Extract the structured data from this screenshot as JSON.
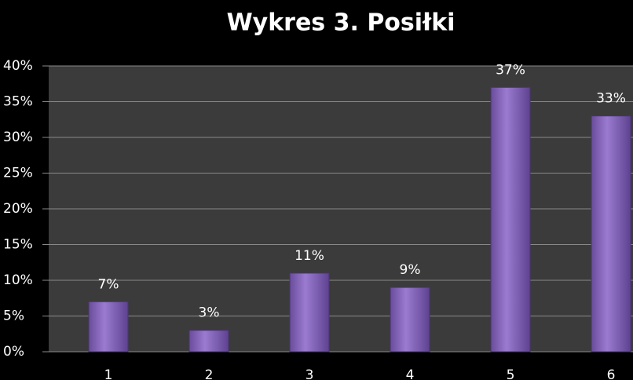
{
  "chart_data": {
    "type": "bar",
    "title": "Wykres 3. Posiłki",
    "categories": [
      "1",
      "2",
      "3",
      "4",
      "5",
      "6"
    ],
    "values": [
      7,
      3,
      11,
      9,
      37,
      33
    ],
    "value_labels": [
      "7%",
      "3%",
      "11%",
      "9%",
      "37%",
      "33%"
    ],
    "color": "#8a68c0",
    "ylim": [
      0,
      40
    ],
    "yticks": [
      {
        "value": 0,
        "label": "0%"
      },
      {
        "value": 5,
        "label": "5%"
      },
      {
        "value": 10,
        "label": "10%"
      },
      {
        "value": 15,
        "label": "15%"
      },
      {
        "value": 20,
        "label": "20%"
      },
      {
        "value": 25,
        "label": "25%"
      },
      {
        "value": 30,
        "label": "30%"
      },
      {
        "value": 35,
        "label": "35%"
      },
      {
        "value": 40,
        "label": "40%"
      }
    ],
    "grid": true
  }
}
